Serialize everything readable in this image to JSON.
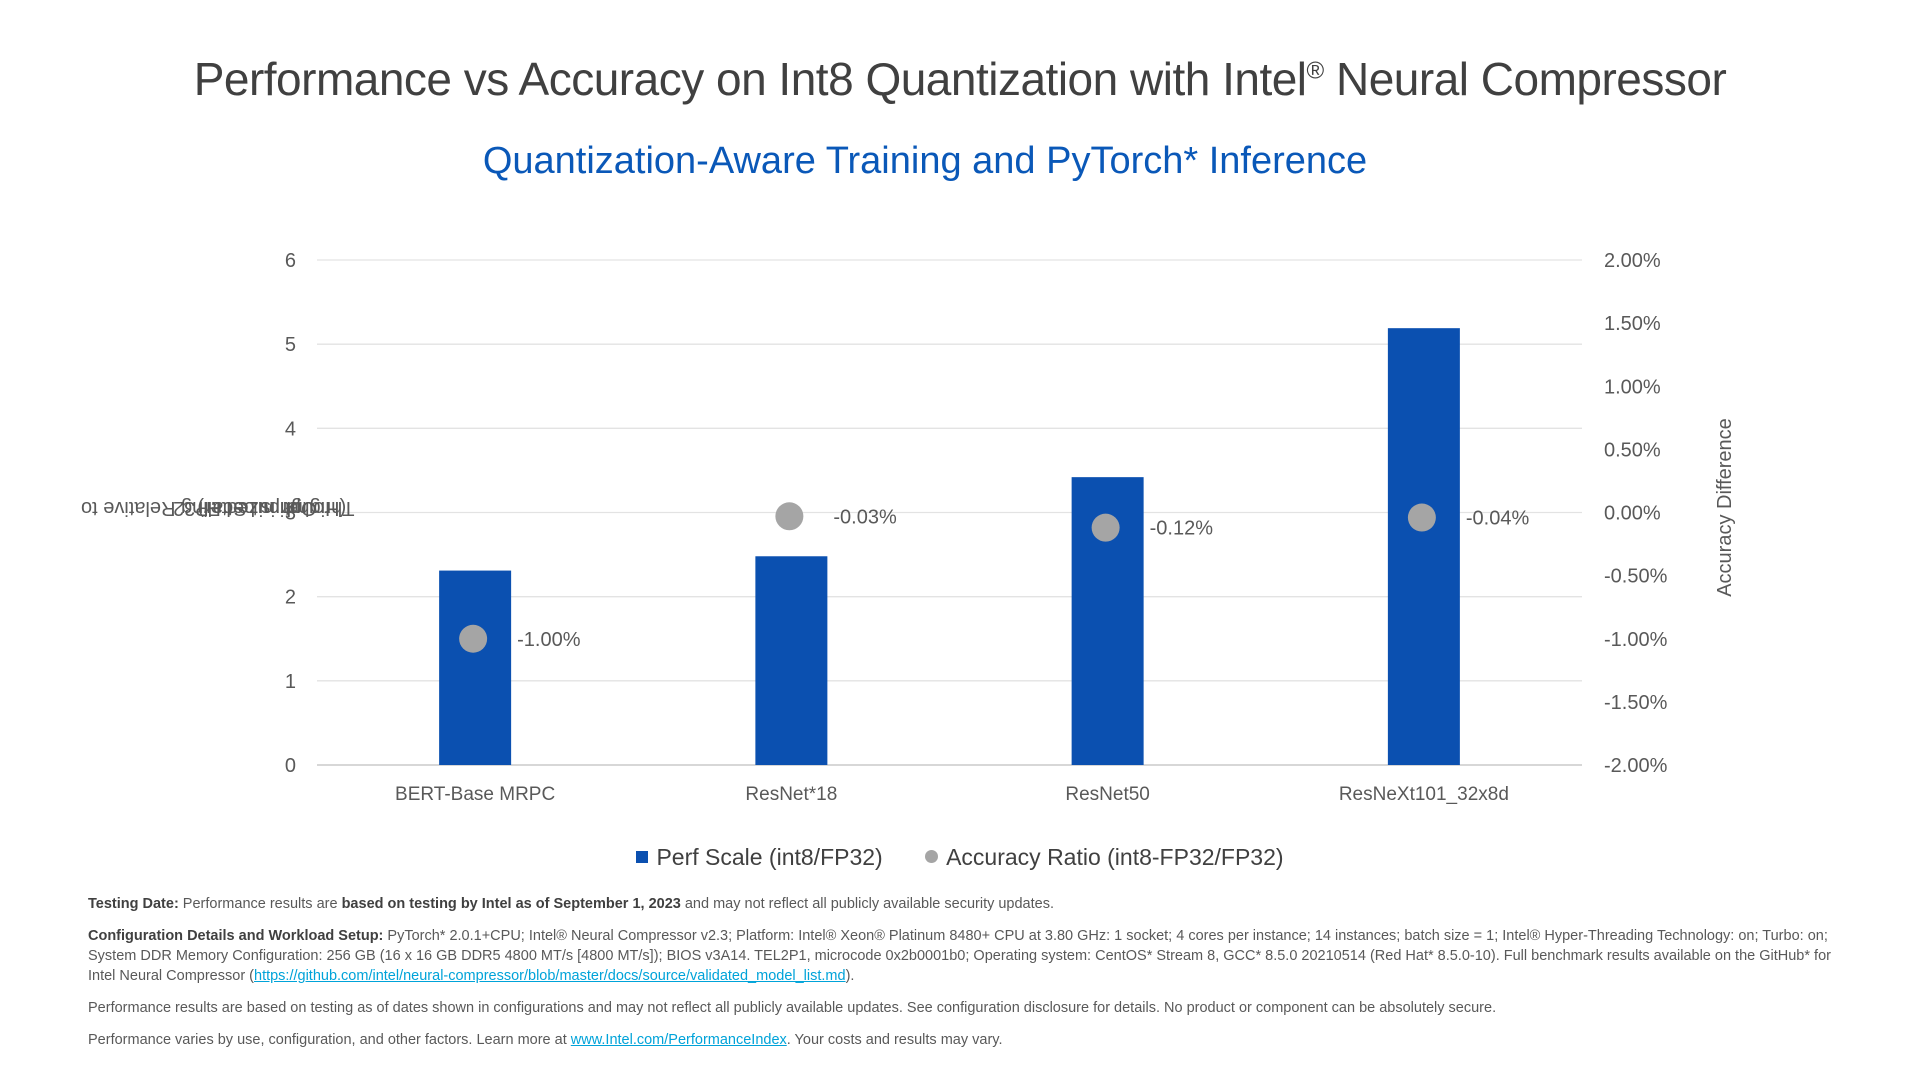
{
  "header": {
    "title": "Performance vs Accuracy on Int8 Quantization with Intel",
    "title_reg": "®",
    "title_end": " Neural Compressor",
    "subtitle": "Quantization-Aware Training and PyTorch* Inference"
  },
  "chart_data": {
    "type": "bar",
    "categories": [
      "BERT-Base MRPC",
      "ResNet*18",
      "ResNet50",
      "ResNeXt101_32x8d"
    ],
    "series": [
      {
        "name": "Perf Scale (int8/FP32)",
        "type": "bar",
        "axis": "left",
        "color": "#0b50b0",
        "values": [
          2.31,
          2.48,
          3.42,
          5.19
        ]
      },
      {
        "name": "Accuracy Ratio (int8-FP32/FP32)",
        "type": "scatter",
        "axis": "right",
        "color": "#a5a5a5",
        "values": [
          -0.01,
          -0.0003,
          -0.0012,
          -0.0004
        ],
        "labels": [
          "-1.00%",
          "-0.03%",
          "-0.12%",
          "-0.04%"
        ]
      }
    ],
    "ylabel": "Throughput Scaling Relative to Optimized FP32 (Higher is better)",
    "ylabel_lines": [
      "Throughput Scaling Relative to",
      "Optimized FP32",
      "(Higher is better)"
    ],
    "y2label": "Accuracy Difference",
    "ylim": [
      0,
      6
    ],
    "yticks": [
      "0",
      "1",
      "2",
      "3",
      "4",
      "5",
      "6"
    ],
    "y2lim": [
      -0.02,
      0.02
    ],
    "y2ticks": [
      "-2.00%",
      "-1.50%",
      "-1.00%",
      "-0.50%",
      "0.00%",
      "0.50%",
      "1.00%",
      "1.50%",
      "2.00%"
    ],
    "grid": true,
    "legend_position": "bottom"
  },
  "footnotes": {
    "testing": {
      "label": "Testing Date:",
      "text1": " Performance results are ",
      "bold": "based on testing by Intel as of September 1, 2023",
      "text2": " and may not reflect all publicly available security updates."
    },
    "config": {
      "label": "Configuration Details and Workload Setup:",
      "text": " PyTorch* 2.0.1+CPU; Intel® Neural Compressor v2.3; Platform: Intel® Xeon® Platinum 8480+ CPU at 3.80 GHz: 1 socket; 4 cores per instance; 14 instances; batch size = 1; Intel® Hyper-Threading Technology: on; Turbo: on; System DDR Memory Configuration: 256 GB (16 x 16 GB DDR5 4800 MT/s [4800 MT/s]); BIOS v3A14. TEL2P1, microcode 0x2b0001b0; Operating system: CentOS* Stream 8, GCC* 8.5.0 20210514 (Red Hat* 8.5.0-10). Full benchmark results available on the GitHub* for Intel Neural Compressor (",
      "link": "https://github.com/intel/neural-compressor/blob/master/docs/source/validated_model_list.md",
      "end": ")."
    },
    "disclaimer": "Performance results are based on testing as of dates shown in configurations and may not reflect all publicly available updates. See configuration disclosure for details. No product or component can be absolutely secure.",
    "perf": {
      "text1": "Performance varies by use, configuration, and other factors. Learn more at ",
      "link": "www.Intel.com/PerformanceIndex",
      "text2": ". Your costs and results may vary."
    }
  }
}
